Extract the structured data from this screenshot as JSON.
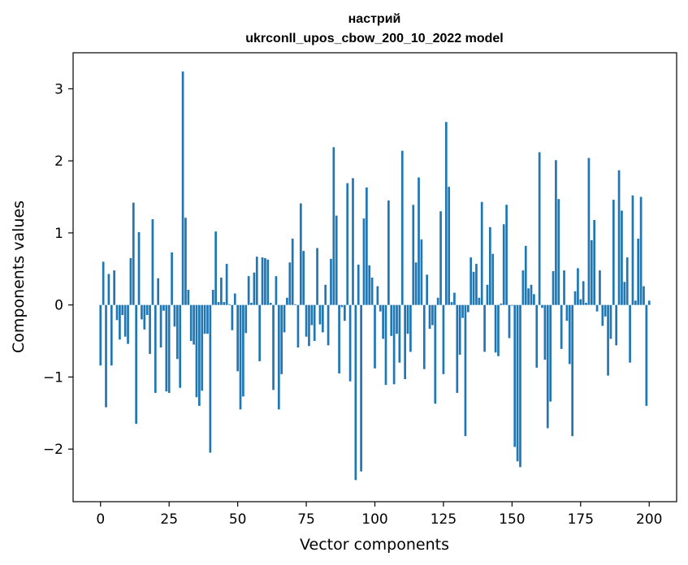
{
  "chart_data": {
    "type": "bar",
    "title_lines": [
      "настрий",
      "ukrconll_upos_cbow_200_10_2022 model"
    ],
    "xlabel": "Vector components",
    "ylabel": "Components values",
    "xlim": [
      -10,
      210
    ],
    "ylim": [
      -2.73,
      3.5
    ],
    "xticks": [
      0,
      25,
      50,
      75,
      100,
      125,
      150,
      175,
      200
    ],
    "yticks": [
      -2,
      -1,
      0,
      1,
      2,
      3
    ],
    "bar_color": "#1f77b4",
    "grid": false,
    "legend": "none",
    "x_start": 0,
    "values": [
      -0.84,
      0.6,
      -1.42,
      0.43,
      -0.84,
      0.48,
      -0.21,
      -0.48,
      -0.14,
      -0.44,
      -0.54,
      0.65,
      1.42,
      -1.65,
      1.01,
      -0.2,
      -0.34,
      -0.14,
      -0.68,
      1.19,
      -1.22,
      0.37,
      -0.59,
      -0.08,
      -1.2,
      -1.22,
      0.73,
      -0.3,
      -0.75,
      -1.15,
      3.24,
      1.21,
      0.21,
      -0.5,
      -0.55,
      -1.28,
      -1.4,
      -1.19,
      -0.4,
      -0.4,
      -2.05,
      0.21,
      1.02,
      0.04,
      0.38,
      0.04,
      0.57,
      0.01,
      -0.35,
      0.16,
      -0.92,
      -1.45,
      -1.27,
      -0.39,
      0.4,
      0.03,
      0.45,
      0.67,
      -0.78,
      0.66,
      0.65,
      0.63,
      0.03,
      -1.18,
      0.4,
      -1.45,
      -0.96,
      -0.38,
      0.1,
      0.59,
      0.92,
      0.01,
      -0.59,
      1.41,
      0.75,
      -0.44,
      -0.57,
      -0.28,
      -0.5,
      0.79,
      -0.27,
      -0.38,
      0.28,
      -0.56,
      0.64,
      2.19,
      1.24,
      -0.95,
      -0.03,
      -0.22,
      1.69,
      -1.06,
      1.76,
      -2.43,
      0.56,
      -2.31,
      1.2,
      1.63,
      0.55,
      0.38,
      -0.88,
      0.26,
      -0.09,
      -0.47,
      -1.11,
      1.45,
      -0.43,
      -1.1,
      -0.4,
      -0.8,
      2.14,
      -1.03,
      -0.4,
      -0.65,
      1.39,
      0.59,
      1.77,
      0.91,
      -0.89,
      0.42,
      -0.33,
      -0.28,
      -1.37,
      0.1,
      1.3,
      -0.96,
      2.54,
      1.64,
      0.04,
      0.17,
      -1.22,
      -0.69,
      -0.18,
      -1.82,
      -0.1,
      0.66,
      0.46,
      0.57,
      0.1,
      1.43,
      -0.65,
      0.28,
      1.08,
      0.71,
      -0.66,
      -0.71,
      0.02,
      1.12,
      1.39,
      -0.46,
      -0.01,
      -1.97,
      -2.17,
      -2.25,
      0.48,
      0.82,
      0.23,
      0.28,
      0.15,
      -0.87,
      2.12,
      -0.04,
      -0.76,
      -1.71,
      -1.34,
      0.47,
      2.01,
      1.47,
      -0.61,
      0.48,
      -0.22,
      -0.82,
      -1.82,
      0.19,
      0.51,
      0.08,
      0.33,
      0.03,
      2.04,
      0.9,
      1.18,
      -0.09,
      0.48,
      -0.29,
      -0.16,
      -0.98,
      -0.47,
      1.46,
      -0.56,
      1.87,
      1.31,
      0.32,
      0.66,
      -0.8,
      1.52,
      0.06,
      0.92,
      1.5,
      0.26,
      -1.4,
      0.06
    ]
  }
}
